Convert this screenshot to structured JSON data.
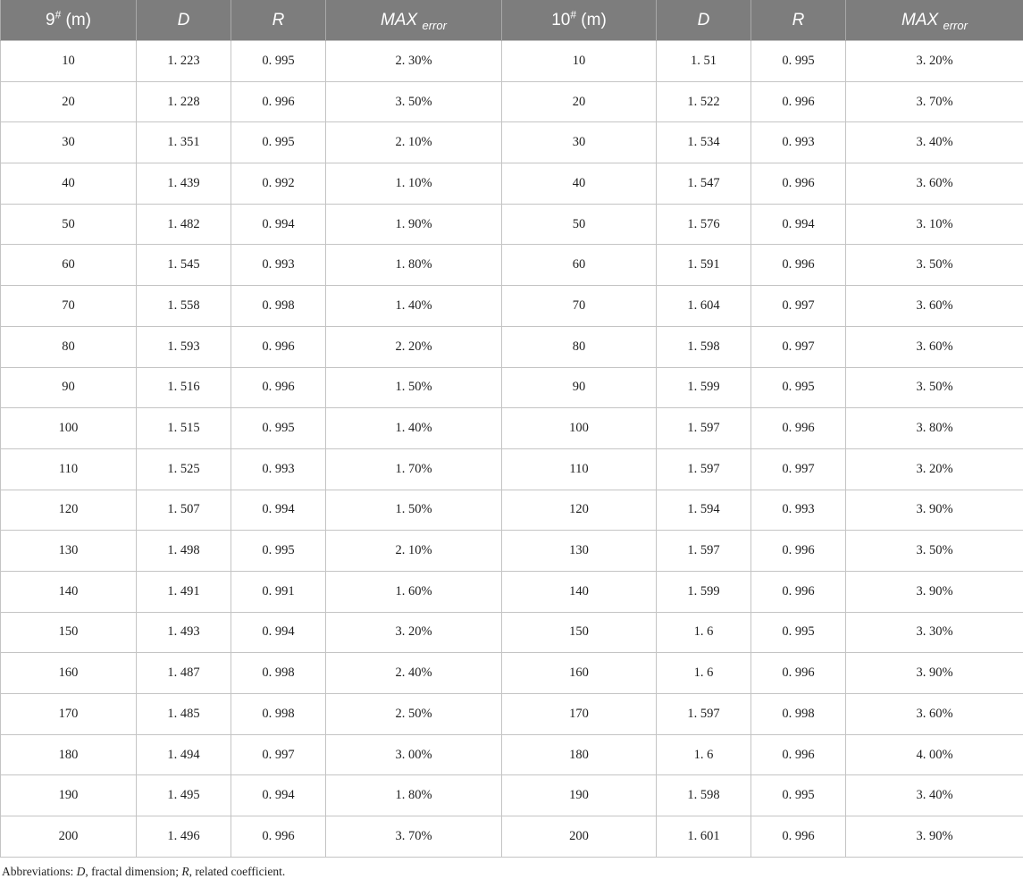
{
  "table": {
    "headers": [
      {
        "main": "9",
        "sup": "#",
        "after": " (m)",
        "style": "normal"
      },
      {
        "main": "D",
        "style": "italic"
      },
      {
        "main": "R",
        "style": "italic"
      },
      {
        "main": "MAX",
        "sub": "error",
        "style": "italic"
      },
      {
        "main": "10",
        "sup": "#",
        "after": " (m)",
        "style": "normal"
      },
      {
        "main": "D",
        "style": "italic"
      },
      {
        "main": "R",
        "style": "italic"
      },
      {
        "main": "MAX",
        "sub": "error",
        "style": "italic"
      }
    ],
    "rows": [
      [
        "10",
        "1. 223",
        "0. 995",
        "2. 30%",
        "10",
        "1. 51",
        "0. 995",
        "3. 20%"
      ],
      [
        "20",
        "1. 228",
        "0. 996",
        "3. 50%",
        "20",
        "1. 522",
        "0. 996",
        "3. 70%"
      ],
      [
        "30",
        "1. 351",
        "0. 995",
        "2. 10%",
        "30",
        "1. 534",
        "0. 993",
        "3. 40%"
      ],
      [
        "40",
        "1. 439",
        "0. 992",
        "1. 10%",
        "40",
        "1. 547",
        "0. 996",
        "3. 60%"
      ],
      [
        "50",
        "1. 482",
        "0. 994",
        "1. 90%",
        "50",
        "1. 576",
        "0. 994",
        "3. 10%"
      ],
      [
        "60",
        "1. 545",
        "0. 993",
        "1. 80%",
        "60",
        "1. 591",
        "0. 996",
        "3. 50%"
      ],
      [
        "70",
        "1. 558",
        "0. 998",
        "1. 40%",
        "70",
        "1. 604",
        "0. 997",
        "3. 60%"
      ],
      [
        "80",
        "1. 593",
        "0. 996",
        "2. 20%",
        "80",
        "1. 598",
        "0. 997",
        "3. 60%"
      ],
      [
        "90",
        "1. 516",
        "0. 996",
        "1. 50%",
        "90",
        "1. 599",
        "0. 995",
        "3. 50%"
      ],
      [
        "100",
        "1. 515",
        "0. 995",
        "1. 40%",
        "100",
        "1. 597",
        "0. 996",
        "3. 80%"
      ],
      [
        "110",
        "1. 525",
        "0. 993",
        "1. 70%",
        "110",
        "1. 597",
        "0. 997",
        "3. 20%"
      ],
      [
        "120",
        "1. 507",
        "0. 994",
        "1. 50%",
        "120",
        "1. 594",
        "0. 993",
        "3. 90%"
      ],
      [
        "130",
        "1. 498",
        "0. 995",
        "2. 10%",
        "130",
        "1. 597",
        "0. 996",
        "3. 50%"
      ],
      [
        "140",
        "1. 491",
        "0. 991",
        "1. 60%",
        "140",
        "1. 599",
        "0. 996",
        "3. 90%"
      ],
      [
        "150",
        "1. 493",
        "0. 994",
        "3. 20%",
        "150",
        "1. 6",
        "0. 995",
        "3. 30%"
      ],
      [
        "160",
        "1. 487",
        "0. 998",
        "2. 40%",
        "160",
        "1. 6",
        "0. 996",
        "3. 90%"
      ],
      [
        "170",
        "1. 485",
        "0. 998",
        "2. 50%",
        "170",
        "1. 597",
        "0. 998",
        "3. 60%"
      ],
      [
        "180",
        "1. 494",
        "0. 997",
        "3. 00%",
        "180",
        "1. 6",
        "0. 996",
        "4. 00%"
      ],
      [
        "190",
        "1. 495",
        "0. 994",
        "1. 80%",
        "190",
        "1. 598",
        "0. 995",
        "3. 40%"
      ],
      [
        "200",
        "1. 496",
        "0. 996",
        "3. 70%",
        "200",
        "1. 601",
        "0. 996",
        "3. 90%"
      ]
    ]
  },
  "footnote": {
    "prefix": "Abbreviations: ",
    "d_symbol": "D",
    "d_text": ", fractal dimension; ",
    "r_symbol": "R",
    "r_text": ", related coefficient."
  },
  "colors": {
    "header_background": "#7d7d7d",
    "header_text": "#ffffff",
    "grid_line": "#c4c4c4"
  }
}
